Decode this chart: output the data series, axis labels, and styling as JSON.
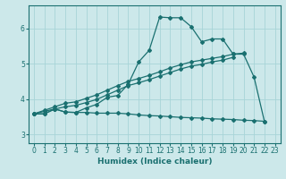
{
  "xlabel": "Humidex (Indice chaleur)",
  "background_color": "#cce8ea",
  "line_color": "#1a7070",
  "grid_color": "#a8d4d8",
  "xlim": [
    -0.5,
    23.5
  ],
  "ylim": [
    2.75,
    6.65
  ],
  "yticks": [
    3,
    4,
    5,
    6
  ],
  "xticks": [
    0,
    1,
    2,
    3,
    4,
    5,
    6,
    7,
    8,
    9,
    10,
    11,
    12,
    13,
    14,
    15,
    16,
    17,
    18,
    19,
    20,
    21,
    22,
    23
  ],
  "series": [
    {
      "x": [
        0,
        1,
        2,
        3,
        4,
        5,
        6,
        7,
        8,
        9,
        10,
        11,
        12,
        13,
        14,
        15,
        16,
        17,
        18,
        19,
        20,
        21,
        22
      ],
      "y": [
        3.58,
        3.58,
        3.72,
        3.63,
        3.62,
        3.75,
        3.85,
        4.05,
        4.1,
        4.42,
        5.05,
        5.38,
        6.32,
        6.3,
        6.3,
        6.05,
        5.62,
        5.7,
        5.7,
        5.27,
        5.27,
        4.62,
        3.35
      ]
    },
    {
      "x": [
        0,
        1,
        2,
        3,
        4,
        5,
        6,
        7,
        8,
        9,
        10,
        11,
        12,
        13,
        14,
        15,
        16,
        17,
        18,
        19,
        20,
        21,
        22
      ],
      "y": [
        3.58,
        3.58,
        3.72,
        3.63,
        3.62,
        3.62,
        3.6,
        3.6,
        3.6,
        3.58,
        3.55,
        3.53,
        3.52,
        3.5,
        3.48,
        3.47,
        3.46,
        3.44,
        3.43,
        3.42,
        3.4,
        3.39,
        3.37
      ]
    },
    {
      "x": [
        0,
        1,
        2,
        3,
        4,
        5,
        6,
        7,
        8,
        9,
        10,
        11,
        12,
        13,
        14,
        15,
        16,
        17,
        18,
        19,
        20
      ],
      "y": [
        3.58,
        3.68,
        3.78,
        3.88,
        3.92,
        4.02,
        4.12,
        4.25,
        4.38,
        4.5,
        4.58,
        4.67,
        4.77,
        4.88,
        4.97,
        5.05,
        5.1,
        5.15,
        5.2,
        5.27,
        5.3
      ]
    },
    {
      "x": [
        0,
        1,
        2,
        3,
        4,
        5,
        6,
        7,
        8,
        9,
        10,
        11,
        12,
        13,
        14,
        15,
        16,
        17,
        18,
        19
      ],
      "y": [
        3.58,
        3.65,
        3.72,
        3.78,
        3.82,
        3.9,
        3.99,
        4.12,
        4.25,
        4.38,
        4.46,
        4.55,
        4.65,
        4.75,
        4.85,
        4.93,
        4.98,
        5.05,
        5.1,
        5.18
      ]
    }
  ]
}
